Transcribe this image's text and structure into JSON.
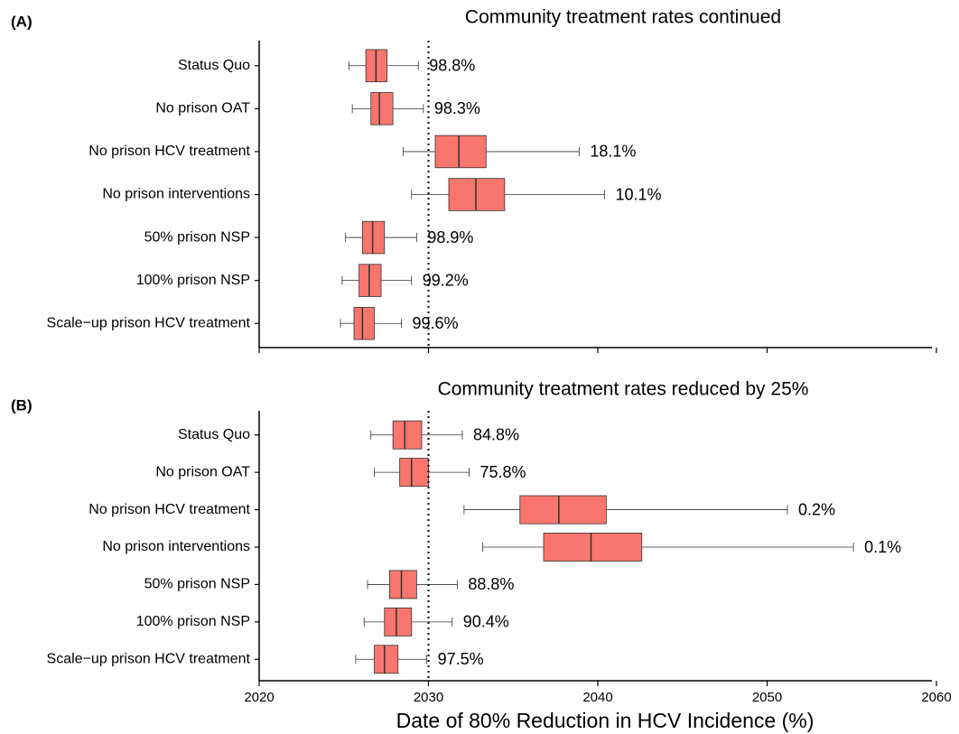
{
  "chart_data": [
    {
      "type": "box",
      "panel_label": "(A)",
      "title": "Community treatment rates continued",
      "categories": [
        "Status Quo",
        "No prison OAT",
        "No prison HCV treatment",
        "No prison interventions",
        "50% prison NSP",
        "100% prison NSP",
        "Scale−up prison HCV treatment"
      ],
      "series": [
        {
          "color": "#f8766d",
          "whisker_low": [
            2025.3,
            2025.5,
            2028.5,
            2029.0,
            2025.1,
            2024.9,
            2024.8
          ],
          "q1": [
            2026.3,
            2026.6,
            2030.4,
            2031.2,
            2026.1,
            2025.9,
            2025.6
          ],
          "median": [
            2026.9,
            2027.1,
            2031.8,
            2032.8,
            2026.7,
            2026.5,
            2026.1
          ],
          "q3": [
            2027.55,
            2027.9,
            2033.4,
            2034.5,
            2027.4,
            2027.2,
            2026.8
          ],
          "whisker_high": [
            2029.4,
            2029.7,
            2038.9,
            2040.4,
            2029.3,
            2029.0,
            2028.4
          ],
          "annotations": [
            "98.8%",
            "98.3%",
            "18.1%",
            "10.1%",
            "98.9%",
            "99.2%",
            "99.6%"
          ]
        }
      ],
      "xlim": [
        2020,
        2060
      ],
      "xticks": [
        2020,
        2030,
        2040,
        2050,
        2060
      ],
      "xtick_labels": false,
      "vline": 2030
    },
    {
      "type": "box",
      "panel_label": "(B)",
      "title": "Community treatment rates reduced by 25%",
      "categories": [
        "Status Quo",
        "No prison OAT",
        "No prison HCV treatment",
        "No prison interventions",
        "50% prison NSP",
        "100% prison NSP",
        "Scale−up prison HCV treatment"
      ],
      "series": [
        {
          "color": "#f8766d",
          "whisker_low": [
            2026.6,
            2026.8,
            2032.1,
            2033.2,
            2026.4,
            2026.2,
            2025.7
          ],
          "q1": [
            2027.9,
            2028.3,
            2035.4,
            2036.8,
            2027.7,
            2027.4,
            2026.8
          ],
          "median": [
            2028.6,
            2029.0,
            2037.7,
            2039.6,
            2028.4,
            2028.1,
            2027.4
          ],
          "q3": [
            2029.6,
            2030.0,
            2040.5,
            2042.6,
            2029.3,
            2029.0,
            2028.2
          ],
          "whisker_high": [
            2032.0,
            2032.4,
            2051.2,
            2055.1,
            2031.7,
            2031.4,
            2029.9
          ],
          "annotations": [
            "84.8%",
            "75.8%",
            "0.2%",
            "0.1%",
            "88.8%",
            "90.4%",
            "97.5%"
          ]
        }
      ],
      "xlim": [
        2020,
        2060
      ],
      "xticks": [
        2020,
        2030,
        2040,
        2050,
        2060
      ],
      "xtick_labels": true,
      "vline": 2030,
      "xlabel": "Date of 80% Reduction in HCV Incidence (%)"
    }
  ]
}
